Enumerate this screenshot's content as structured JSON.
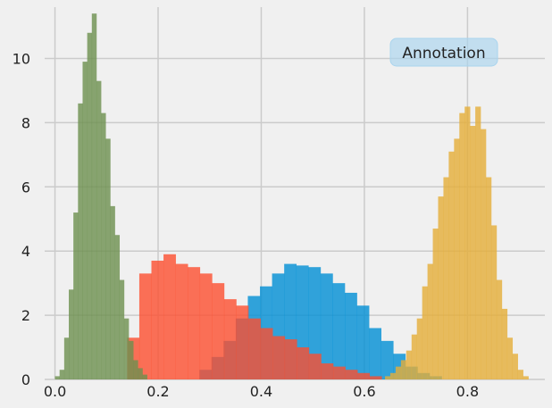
{
  "chart_data": {
    "type": "histogram",
    "title": "",
    "xlabel": "",
    "ylabel": "",
    "xlim": [
      -0.02,
      0.95
    ],
    "ylim": [
      0,
      11.6
    ],
    "xticks": [
      0.0,
      0.2,
      0.4,
      0.6,
      0.8
    ],
    "xtick_labels": [
      "0.0",
      "0.2",
      "0.4",
      "0.6",
      "0.8"
    ],
    "yticks": [
      0,
      2,
      4,
      6,
      8,
      10
    ],
    "ytick_labels": [
      "0",
      "2",
      "4",
      "6",
      "8",
      "10"
    ],
    "grid": true,
    "legend": "none",
    "annotation": "Annotation",
    "series": [
      {
        "color": "#008fd5",
        "bin_start": 0.28,
        "bin_width": 0.0235,
        "values": [
          0.3,
          0.7,
          1.2,
          1.9,
          2.6,
          2.9,
          3.3,
          3.6,
          3.55,
          3.5,
          3.3,
          3.0,
          2.7,
          2.3,
          1.6,
          1.2,
          0.8,
          0.4,
          0.2,
          0.1
        ]
      },
      {
        "color": "#fc4f30",
        "bin_start": 0.14,
        "bin_width": 0.0235,
        "values": [
          1.3,
          3.3,
          3.7,
          3.9,
          3.6,
          3.5,
          3.3,
          3.0,
          2.5,
          2.3,
          1.9,
          1.6,
          1.35,
          1.25,
          1.0,
          0.8,
          0.5,
          0.4,
          0.3,
          0.2,
          0.1
        ]
      },
      {
        "color": "#e5ae38",
        "bin_start": 0.64,
        "bin_width": 0.0103,
        "values": [
          0.1,
          0.2,
          0.4,
          0.6,
          0.9,
          1.4,
          1.9,
          2.9,
          3.6,
          4.7,
          5.7,
          6.3,
          7.1,
          7.5,
          8.3,
          8.5,
          7.9,
          8.5,
          7.8,
          6.3,
          4.8,
          3.1,
          2.2,
          1.3,
          0.8,
          0.3,
          0.1
        ]
      },
      {
        "color": "#6d904f",
        "bin_start": 0.0,
        "bin_width": 0.00893,
        "values": [
          0.1,
          0.3,
          1.3,
          2.8,
          5.2,
          8.6,
          9.9,
          10.8,
          11.4,
          9.3,
          8.3,
          7.5,
          5.4,
          4.5,
          3.1,
          1.9,
          1.2,
          0.6,
          0.35,
          0.15
        ]
      }
    ]
  }
}
